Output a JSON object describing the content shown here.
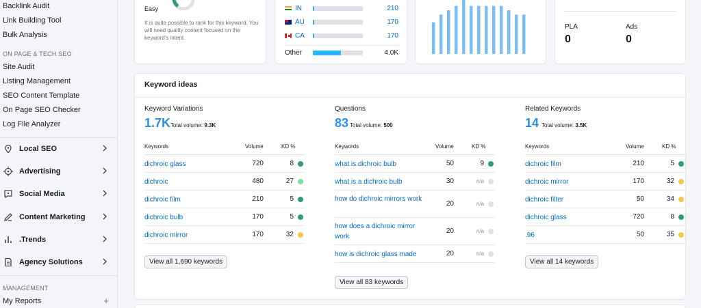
{
  "sidebar": {
    "top_links": [
      "Backlink Audit",
      "Link Building Tool",
      "Bulk Analysis"
    ],
    "section_onpage": "ON PAGE & TECH SEO",
    "onpage_links": [
      "Site Audit",
      "Listing Management",
      "SEO Content Template",
      "On Page SEO Checker",
      "Log File Analyzer"
    ],
    "categories": [
      {
        "label": "Local SEO",
        "icon": "location-pin-icon"
      },
      {
        "label": "Advertising",
        "icon": "target-icon"
      },
      {
        "label": "Social Media",
        "icon": "chat-bubble-icon"
      },
      {
        "label": "Content Marketing",
        "icon": "pencil-icon"
      },
      {
        "label": ".Trends",
        "icon": "bar-chart-icon"
      },
      {
        "label": "Agency Solutions",
        "icon": "document-icon"
      }
    ],
    "section_management": "MANAGEMENT",
    "my_reports": "My Reports"
  },
  "difficulty": {
    "label": "Easy",
    "description": "It is quite possible to rank for this keyword. You will need quality content focused on the keyword's intent."
  },
  "countries": {
    "rows": [
      {
        "code": "IN",
        "value": "210",
        "share": 0.03
      },
      {
        "code": "AU",
        "value": "170",
        "share": 0.025
      },
      {
        "code": "CA",
        "value": "170",
        "share": 0.025
      }
    ],
    "other": {
      "label": "Other",
      "value": "4.0K",
      "share": 0.56
    }
  },
  "trend": {
    "bar_color": "#7bbef3",
    "values": [
      0.58,
      0.72,
      0.8,
      0.88,
      1.0,
      0.88,
      0.88,
      0.88,
      0.88,
      0.88,
      0.8,
      0.72,
      0.72
    ]
  },
  "serp": {
    "pla_label": "PLA",
    "pla_value": "0",
    "ads_label": "Ads",
    "ads_value": "0"
  },
  "keyword_ideas": {
    "title": "Keyword ideas",
    "headers": {
      "keywords": "Keywords",
      "volume": "Volume",
      "kd": "KD %"
    },
    "total_label": "Total volume:",
    "columns": [
      {
        "title": "Keyword Variations",
        "count": "1.7K",
        "total": "9.3K",
        "rows": [
          {
            "keyword": "dichroic glass",
            "volume": "720",
            "kd": "8",
            "kd_color": "#2d9f6f"
          },
          {
            "keyword": "dichroic",
            "volume": "480",
            "kd": "27",
            "kd_color": "#7fdca0"
          },
          {
            "keyword": "dichroic film",
            "volume": "210",
            "kd": "5",
            "kd_color": "#2d9f6f"
          },
          {
            "keyword": "dichroic bulb",
            "volume": "170",
            "kd": "5",
            "kd_color": "#2d9f6f"
          },
          {
            "keyword": "dichroic mirror",
            "volume": "170",
            "kd": "32",
            "kd_color": "#f2c94c"
          }
        ],
        "button": "View all 1,690 keywords"
      },
      {
        "title": "Questions",
        "count": "83",
        "total": "500",
        "rows": [
          {
            "keyword": "what is dichroic bulb",
            "volume": "50",
            "kd": "9",
            "kd_color": "#2d9f6f"
          },
          {
            "keyword": "what is a dichroic bulb",
            "volume": "30",
            "kd": "n/a",
            "kd_color": "#dfe1e7"
          },
          {
            "keyword": "how do dichroic mirrors work",
            "volume": "20",
            "kd": "n/a",
            "kd_color": "#dfe1e7"
          },
          {
            "keyword": "how does a dichroic mirror work",
            "volume": "20",
            "kd": "n/a",
            "kd_color": "#dfe1e7"
          },
          {
            "keyword": "how is dichroic glass made",
            "volume": "20",
            "kd": "n/a",
            "kd_color": "#dfe1e7"
          }
        ],
        "button": "View all 83 keywords"
      },
      {
        "title": "Related Keywords",
        "count": "14",
        "total": "3.5K",
        "rows": [
          {
            "keyword": "dichroic film",
            "volume": "210",
            "kd": "5",
            "kd_color": "#2d9f6f"
          },
          {
            "keyword": "dichroic mirror",
            "volume": "170",
            "kd": "32",
            "kd_color": "#f2c94c"
          },
          {
            "keyword": "dichroic filter",
            "volume": "50",
            "kd": "34",
            "kd_color": "#f2c94c"
          },
          {
            "keyword": "dichroic glass",
            "volume": "720",
            "kd": "8",
            "kd_color": "#2d9f6f"
          },
          {
            "keyword": ".96",
            "volume": "50",
            "kd": "35",
            "kd_color": "#f2c94c"
          }
        ],
        "button": "View all 14 keywords"
      }
    ]
  }
}
